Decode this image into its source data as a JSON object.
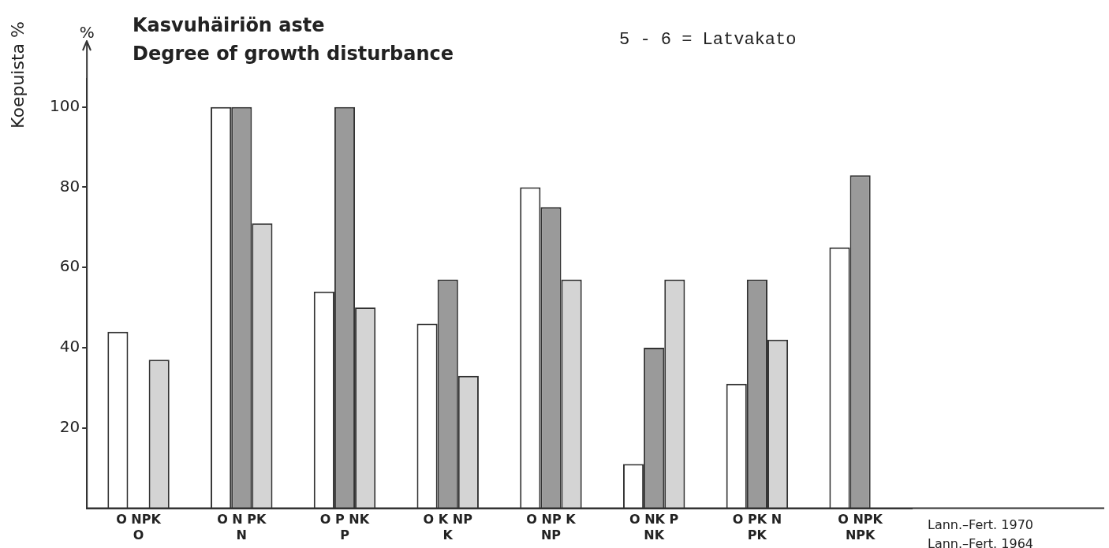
{
  "chart_data": {
    "type": "bar",
    "title": "Kasvuhäiriön aste",
    "subtitle": "Degree of growth disturbance",
    "ylabel": "Koepuista %",
    "categories": [
      "O NPK\nO",
      "O N PK\nN",
      "O P NK\nP",
      "O K NP\nK",
      "O NP K\nNP",
      "O NK P\nNK",
      "O PK N\nPK",
      "O NPK\nNPK"
    ],
    "series": [
      {
        "color": "#ffffff",
        "values": [
          44,
          100,
          54,
          46,
          80,
          11,
          31,
          65
        ]
      },
      {
        "color": "#9a9a9a",
        "values": [
          null,
          100,
          100,
          57,
          75,
          40,
          57,
          83
        ]
      },
      {
        "color": "#d4d4d4",
        "values": [
          37,
          71,
          50,
          33,
          57,
          57,
          42,
          null
        ]
      }
    ],
    "ylim": [
      0,
      107
    ],
    "yticks": [
      20,
      40,
      60,
      80,
      100
    ],
    "grid": false,
    "legend": false,
    "annotations": [
      "%",
      "5 - 6 = Latvakato",
      "Lann.–Fert. 1970",
      "Lann.–Fert. 1964"
    ]
  }
}
